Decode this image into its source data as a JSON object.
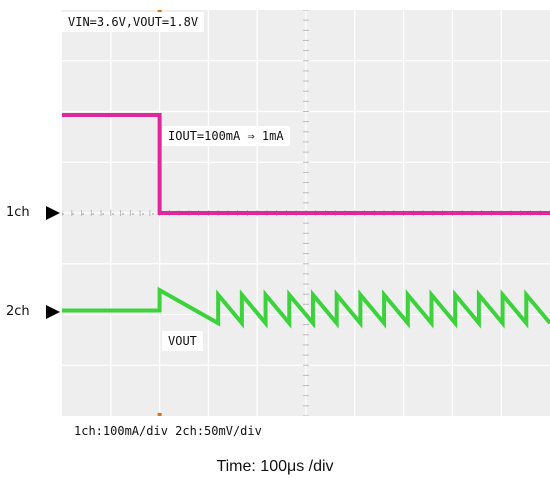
{
  "conditions": "VIN=3.6V,VOUT=1.8V",
  "step_label": "IOUT=100mA ⇒ 1mA",
  "vout_label": "VOUT",
  "scale_note": "1ch:100mA/div 2ch:50mV/div",
  "time_note": "Time: 100μs /div",
  "channels": [
    {
      "label": "1ch",
      "arrow": "arrow-right-icon"
    },
    {
      "label": "2ch",
      "arrow": "arrow-right-icon"
    }
  ],
  "colors": {
    "background": "#eeeeee",
    "grid": "#ffffff",
    "ch1": "#e0279b",
    "ch2": "#3cd23c",
    "marker": "#e86a1c"
  },
  "chart_data": {
    "type": "line",
    "title": "",
    "xlabel": "Time: 100μs /div",
    "ylabel": "",
    "x_divisions": 10,
    "y_divisions": 8,
    "x_unit_per_div": "100μs",
    "trigger_div": 2,
    "series": [
      {
        "name": "1ch",
        "units_per_div": "100mA",
        "segments": [
          {
            "x_div": [
              0,
              2
            ],
            "y_div": 1.95
          },
          {
            "x_div": [
              2,
              10
            ],
            "y_div": 0.02
          }
        ]
      },
      {
        "name": "2ch",
        "units_per_div": "50mV",
        "baseline_div": 0.05,
        "initial_jump_div": 0.45,
        "ripple_peak_div": 0.36,
        "ripple_low_div": -0.2,
        "ripple_cycles": 14,
        "ripple_start_x_div": 3.2
      }
    ]
  }
}
